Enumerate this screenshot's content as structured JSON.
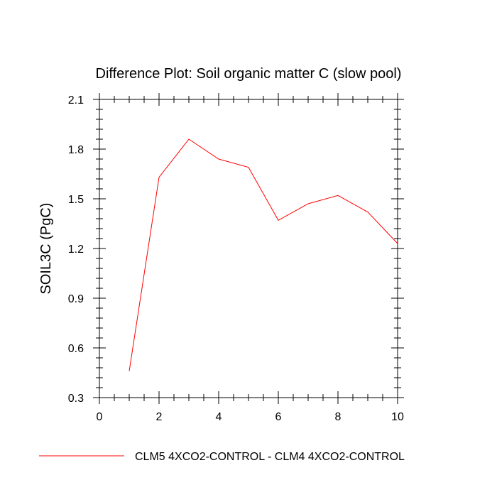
{
  "chart_data": {
    "type": "line",
    "title": "Difference Plot: Soil organic matter C (slow pool)",
    "xlabel": "",
    "ylabel": "SOIL3C  (PgC)",
    "xlim": [
      0,
      10
    ],
    "ylim": [
      0.3,
      2.1
    ],
    "xticks": [
      0,
      2,
      4,
      6,
      8,
      10
    ],
    "xtick_labels": [
      "0",
      "2",
      "4",
      "6",
      "8",
      "10"
    ],
    "yticks": [
      0.3,
      0.6,
      0.9,
      1.2,
      1.5,
      1.8,
      2.1
    ],
    "ytick_labels": [
      "0.3",
      "0.6",
      "0.9",
      "1.2",
      "1.5",
      "1.8",
      "2.1"
    ],
    "grid": false,
    "legend_position": "bottom",
    "series": [
      {
        "name": "CLM5 4XCO2-CONTROL - CLM4 4XCO2-CONTROL",
        "color": "#ff0000",
        "x": [
          1,
          2,
          3,
          4,
          5,
          6,
          7,
          8,
          9,
          10
        ],
        "y": [
          0.46,
          1.63,
          1.86,
          1.74,
          1.69,
          1.37,
          1.47,
          1.52,
          1.42,
          1.23
        ]
      }
    ]
  }
}
